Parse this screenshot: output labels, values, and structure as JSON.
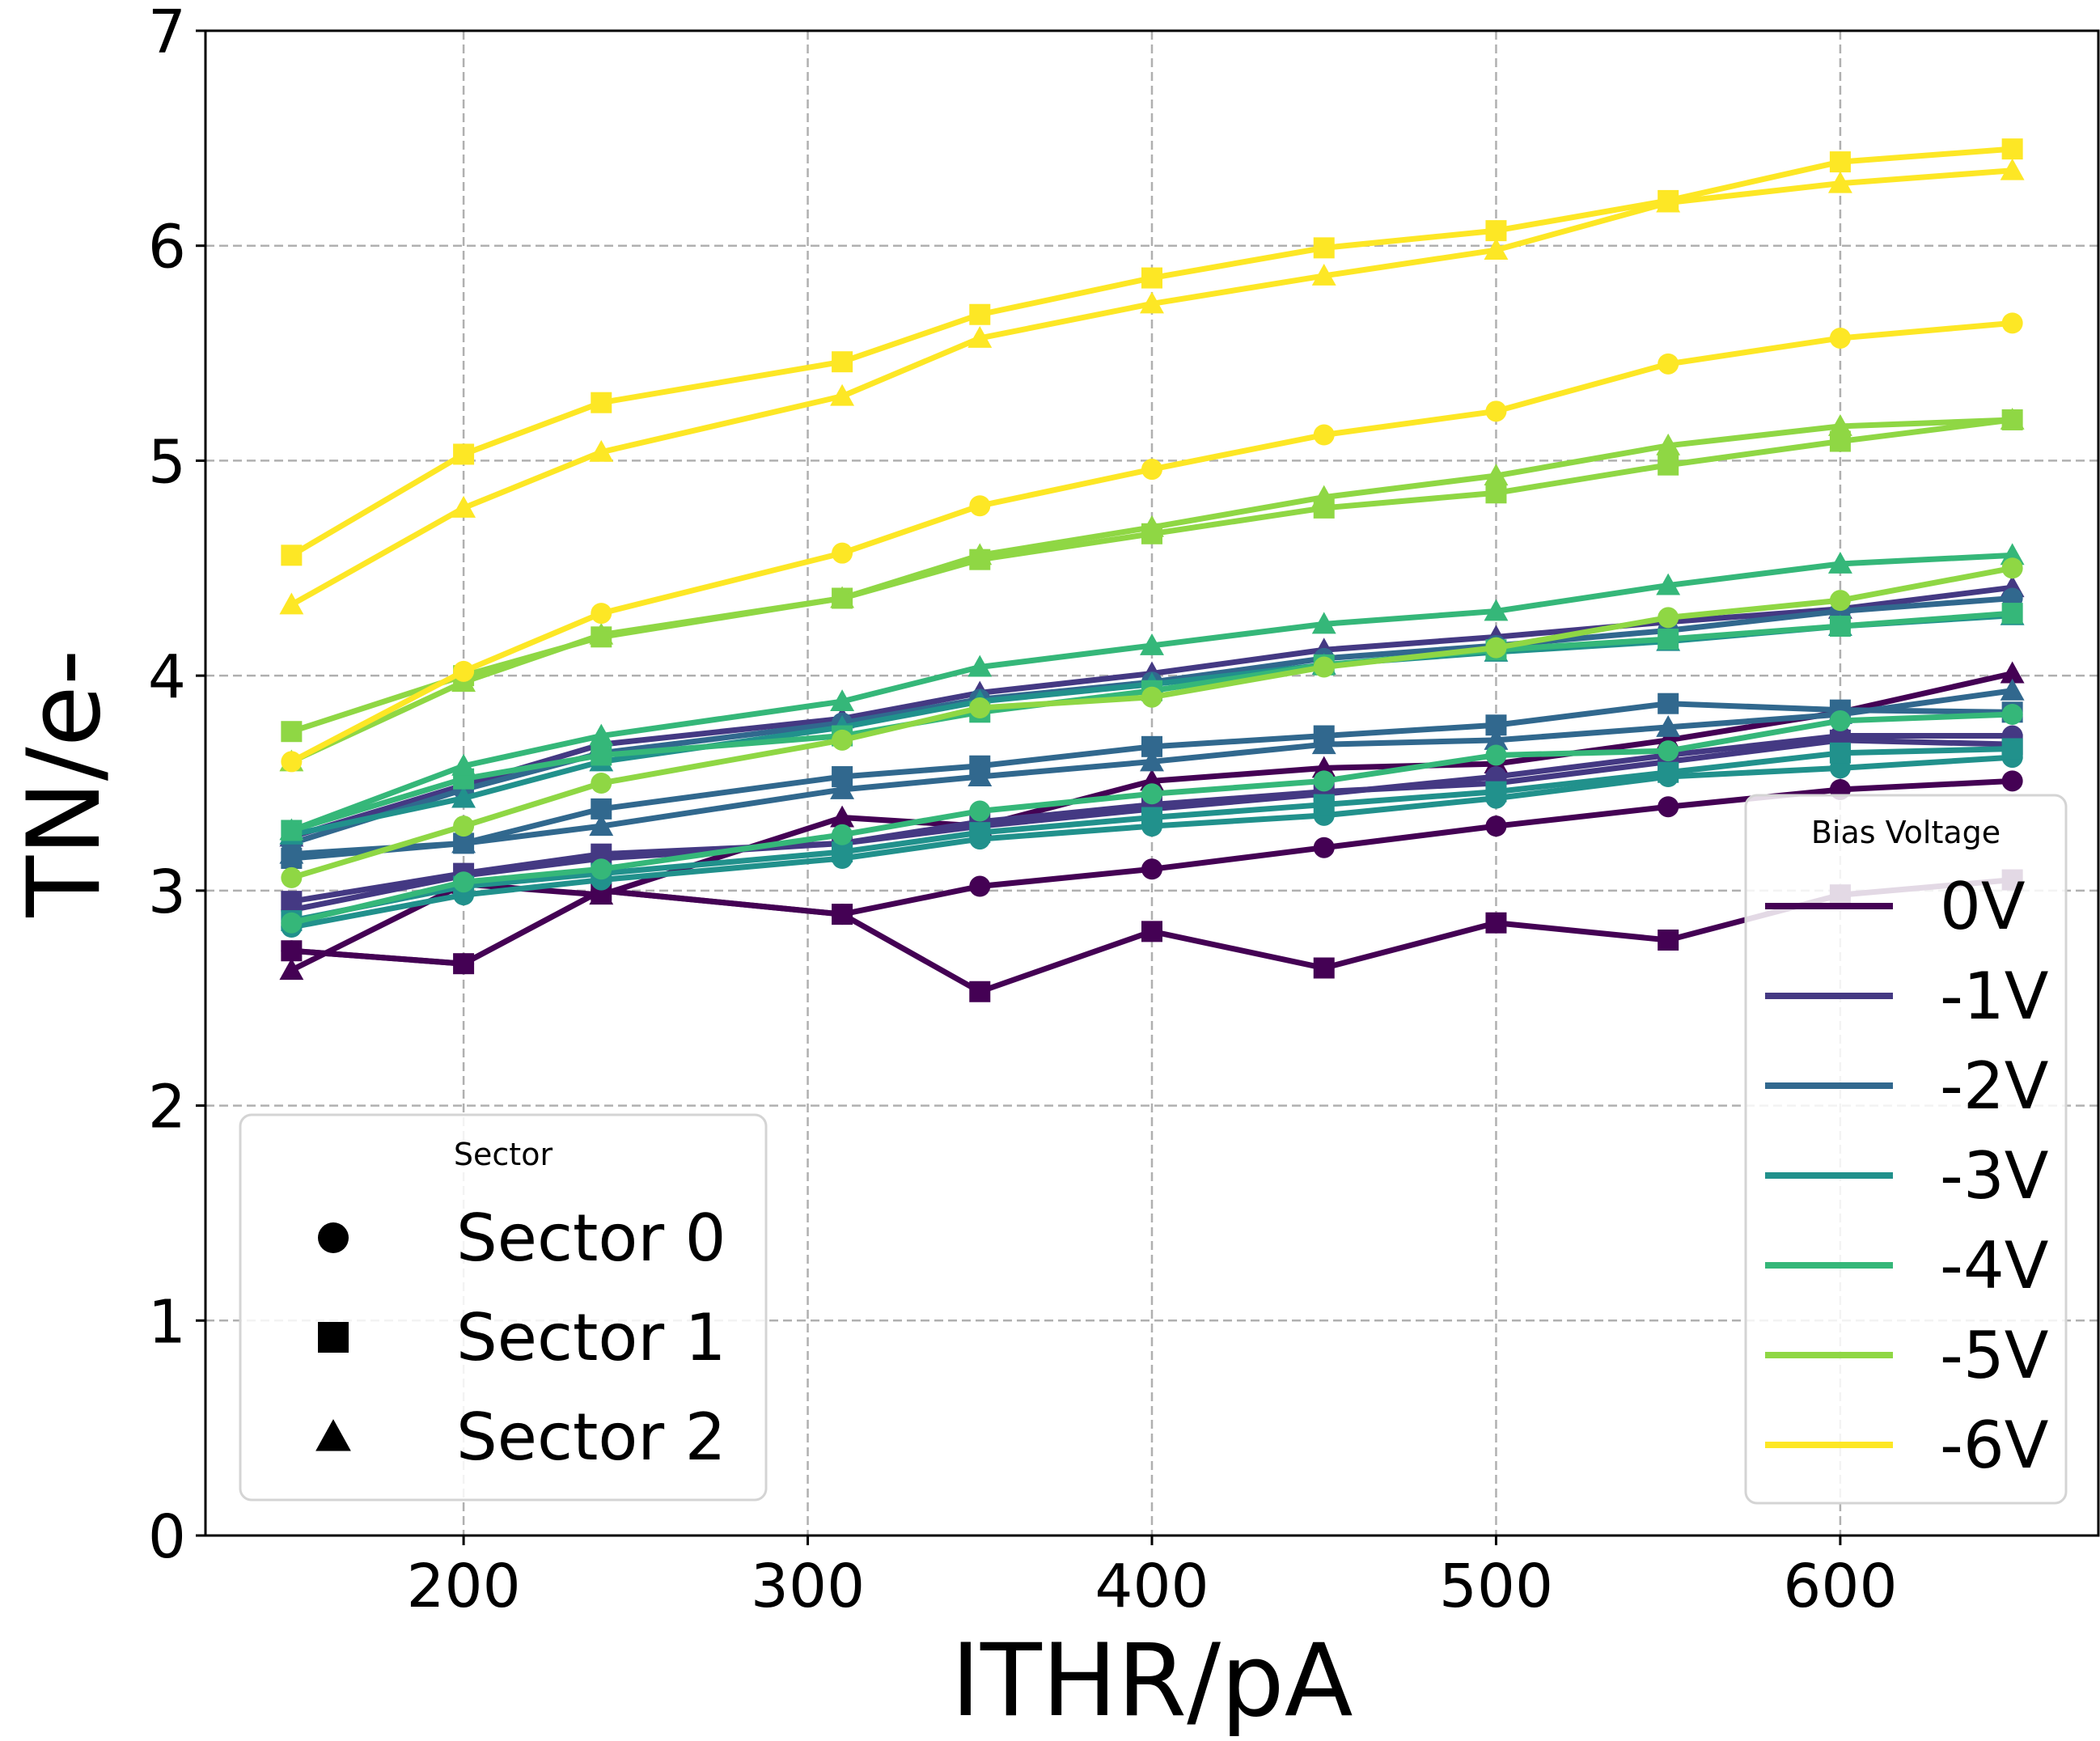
{
  "chart_data": {
    "type": "line",
    "xlabel": "ITHR/pA",
    "ylabel": "TN/e-",
    "xlim": [
      125,
      675
    ],
    "ylim": [
      0,
      7
    ],
    "x_ticks": [
      200,
      300,
      400,
      500,
      600
    ],
    "y_ticks": [
      0,
      1,
      2,
      3,
      4,
      5,
      6,
      7
    ],
    "grid": true,
    "x": [
      150,
      200,
      240,
      310,
      350,
      400,
      450,
      500,
      550,
      600,
      650
    ],
    "legend_bias": {
      "title": "Bias Voltage",
      "placement": "lower-right",
      "entries": [
        {
          "label": "0V",
          "color": "#440154"
        },
        {
          "label": "-1V",
          "color": "#443983"
        },
        {
          "label": "-2V",
          "color": "#31688e"
        },
        {
          "label": "-3V",
          "color": "#21918c"
        },
        {
          "label": "-4V",
          "color": "#35b779"
        },
        {
          "label": "-5V",
          "color": "#8fd744"
        },
        {
          "label": "-6V",
          "color": "#fde725"
        }
      ]
    },
    "legend_sector": {
      "title": "Sector",
      "placement": "lower-left",
      "entries": [
        {
          "label": "Sector 0",
          "marker": "circle"
        },
        {
          "label": "Sector 1",
          "marker": "square"
        },
        {
          "label": "Sector 2",
          "marker": "triangle"
        }
      ]
    },
    "series": [
      {
        "bias": "0V",
        "sector": "Sector 0",
        "color": "#440154",
        "marker": "circle",
        "values": [
          2.72,
          2.66,
          3.0,
          2.89,
          3.02,
          3.1,
          3.2,
          3.3,
          3.39,
          3.47,
          3.51
        ]
      },
      {
        "bias": "0V",
        "sector": "Sector 1",
        "color": "#440154",
        "marker": "square",
        "values": [
          2.72,
          2.66,
          3.0,
          2.89,
          2.53,
          2.81,
          2.64,
          2.85,
          2.77,
          2.98,
          3.05
        ]
      },
      {
        "bias": "0V",
        "sector": "Sector 2",
        "color": "#440154",
        "marker": "triangle",
        "values": [
          2.63,
          3.03,
          2.98,
          3.34,
          3.3,
          3.51,
          3.57,
          3.59,
          3.7,
          3.83,
          4.01
        ]
      },
      {
        "bias": "-1V",
        "sector": "Sector 0",
        "color": "#443983",
        "marker": "circle",
        "values": [
          2.91,
          3.07,
          3.15,
          3.22,
          3.3,
          3.38,
          3.45,
          3.53,
          3.63,
          3.72,
          3.72
        ]
      },
      {
        "bias": "-1V",
        "sector": "Sector 1",
        "color": "#443983",
        "marker": "square",
        "values": [
          2.95,
          3.08,
          3.17,
          3.22,
          3.32,
          3.4,
          3.46,
          3.5,
          3.6,
          3.7,
          3.68
        ]
      },
      {
        "bias": "-1V",
        "sector": "Sector 2",
        "color": "#443983",
        "marker": "triangle",
        "values": [
          3.25,
          3.49,
          3.68,
          3.8,
          3.92,
          4.01,
          4.12,
          4.18,
          4.25,
          4.31,
          4.41
        ]
      },
      {
        "bias": "-2V",
        "sector": "Sector 0",
        "color": "#31688e",
        "marker": "circle",
        "values": [
          3.22,
          3.47,
          3.64,
          3.78,
          3.89,
          3.97,
          4.08,
          4.14,
          4.21,
          4.3,
          4.36
        ]
      },
      {
        "bias": "-2V",
        "sector": "Sector 1",
        "color": "#31688e",
        "marker": "square",
        "values": [
          3.15,
          3.22,
          3.38,
          3.53,
          3.58,
          3.67,
          3.72,
          3.77,
          3.87,
          3.84,
          3.83
        ]
      },
      {
        "bias": "-2V",
        "sector": "Sector 2",
        "color": "#31688e",
        "marker": "triangle",
        "values": [
          3.17,
          3.22,
          3.3,
          3.47,
          3.53,
          3.6,
          3.68,
          3.7,
          3.76,
          3.82,
          3.93
        ]
      },
      {
        "bias": "-3V",
        "sector": "Sector 0",
        "color": "#21918c",
        "marker": "circle",
        "values": [
          2.83,
          2.98,
          3.05,
          3.15,
          3.24,
          3.3,
          3.35,
          3.43,
          3.53,
          3.57,
          3.62
        ]
      },
      {
        "bias": "-3V",
        "sector": "Sector 1",
        "color": "#21918c",
        "marker": "square",
        "values": [
          2.86,
          3.02,
          3.08,
          3.18,
          3.27,
          3.34,
          3.4,
          3.46,
          3.55,
          3.64,
          3.66
        ]
      },
      {
        "bias": "-3V",
        "sector": "Sector 2",
        "color": "#21918c",
        "marker": "triangle",
        "values": [
          3.26,
          3.43,
          3.6,
          3.76,
          3.88,
          3.96,
          4.05,
          4.11,
          4.16,
          4.23,
          4.28
        ]
      },
      {
        "bias": "-4V",
        "sector": "Sector 0",
        "color": "#35b779",
        "marker": "circle",
        "values": [
          2.85,
          3.04,
          3.1,
          3.26,
          3.37,
          3.45,
          3.51,
          3.63,
          3.65,
          3.79,
          3.82
        ]
      },
      {
        "bias": "-4V",
        "sector": "Sector 1",
        "color": "#35b779",
        "marker": "square",
        "values": [
          3.28,
          3.52,
          3.63,
          3.72,
          3.83,
          3.93,
          4.05,
          4.12,
          4.17,
          4.23,
          4.29
        ]
      },
      {
        "bias": "-4V",
        "sector": "Sector 2",
        "color": "#35b779",
        "marker": "triangle",
        "values": [
          3.28,
          3.58,
          3.72,
          3.88,
          4.04,
          4.14,
          4.24,
          4.3,
          4.42,
          4.52,
          4.56
        ]
      },
      {
        "bias": "-5V",
        "sector": "Sector 0",
        "color": "#8fd744",
        "marker": "circle",
        "values": [
          3.06,
          3.3,
          3.5,
          3.7,
          3.85,
          3.9,
          4.04,
          4.13,
          4.27,
          4.35,
          4.5
        ]
      },
      {
        "bias": "-5V",
        "sector": "Sector 1",
        "color": "#8fd744",
        "marker": "square",
        "values": [
          3.74,
          4.0,
          4.18,
          4.36,
          4.54,
          4.66,
          4.78,
          4.85,
          4.98,
          5.09,
          5.19
        ]
      },
      {
        "bias": "-5V",
        "sector": "Sector 2",
        "color": "#8fd744",
        "marker": "triangle",
        "values": [
          3.6,
          3.97,
          4.19,
          4.36,
          4.56,
          4.69,
          4.83,
          4.93,
          5.07,
          5.16,
          5.19
        ]
      },
      {
        "bias": "-6V",
        "sector": "Sector 0",
        "color": "#fde725",
        "marker": "circle",
        "values": [
          3.6,
          4.02,
          4.29,
          4.57,
          4.79,
          4.96,
          5.12,
          5.23,
          5.45,
          5.57,
          5.64
        ]
      },
      {
        "bias": "-6V",
        "sector": "Sector 1",
        "color": "#fde725",
        "marker": "square",
        "values": [
          4.56,
          5.03,
          5.27,
          5.46,
          5.68,
          5.85,
          5.99,
          6.07,
          6.21,
          6.39,
          6.45
        ]
      },
      {
        "bias": "-6V",
        "sector": "Sector 2",
        "color": "#fde725",
        "marker": "triangle",
        "values": [
          4.33,
          4.78,
          5.04,
          5.3,
          5.57,
          5.73,
          5.86,
          5.98,
          6.2,
          6.29,
          6.35
        ]
      }
    ]
  }
}
